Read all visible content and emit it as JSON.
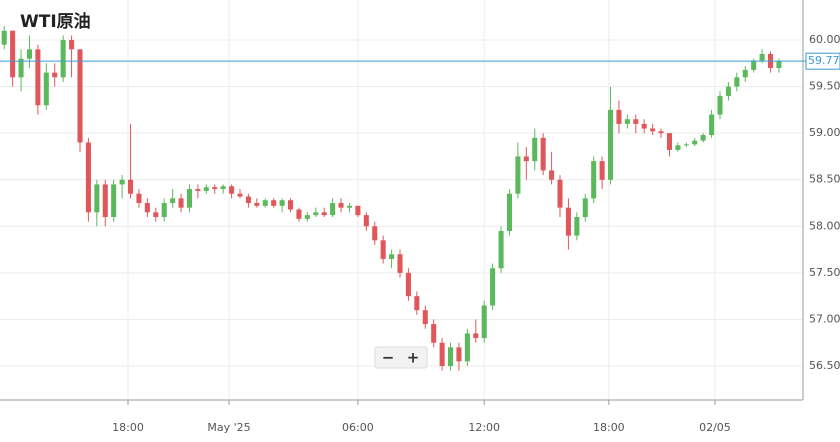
{
  "chart_data": {
    "type": "candlestick",
    "title": "WTI原油",
    "up_color": "#5cb85c",
    "down_color": "#e0575b",
    "grid": true,
    "candles": [
      [
        59.95,
        60.15,
        59.9,
        60.1
      ],
      [
        60.1,
        60.1,
        59.5,
        59.6
      ],
      [
        59.6,
        59.9,
        59.45,
        59.8
      ],
      [
        59.8,
        60.05,
        59.7,
        59.9
      ],
      [
        59.9,
        59.95,
        59.2,
        59.3
      ],
      [
        59.3,
        59.75,
        59.25,
        59.65
      ],
      [
        59.65,
        59.75,
        59.5,
        59.6
      ],
      [
        59.6,
        60.05,
        59.55,
        60.0
      ],
      [
        60.0,
        60.05,
        59.6,
        59.9
      ],
      [
        59.9,
        59.9,
        58.8,
        58.9
      ],
      [
        58.9,
        58.95,
        58.05,
        58.15
      ],
      [
        58.15,
        58.5,
        58.0,
        58.45
      ],
      [
        58.45,
        58.5,
        58.0,
        58.1
      ],
      [
        58.1,
        58.5,
        58.05,
        58.45
      ],
      [
        58.45,
        58.55,
        58.3,
        58.5
      ],
      [
        58.5,
        59.1,
        58.3,
        58.35
      ],
      [
        58.35,
        58.4,
        58.2,
        58.25
      ],
      [
        58.25,
        58.3,
        58.1,
        58.15
      ],
      [
        58.15,
        58.2,
        58.05,
        58.1
      ],
      [
        58.1,
        58.3,
        58.05,
        58.25
      ],
      [
        58.25,
        58.4,
        58.2,
        58.3
      ],
      [
        58.3,
        58.35,
        58.15,
        58.2
      ],
      [
        58.2,
        58.45,
        58.15,
        58.4
      ],
      [
        58.4,
        58.45,
        58.3,
        58.38
      ],
      [
        58.38,
        58.45,
        58.35,
        58.42
      ],
      [
        58.42,
        58.45,
        58.35,
        58.4
      ],
      [
        58.4,
        58.45,
        58.35,
        58.43
      ],
      [
        58.43,
        58.45,
        58.3,
        58.35
      ],
      [
        58.35,
        58.4,
        58.3,
        58.32
      ],
      [
        58.32,
        58.35,
        58.2,
        58.25
      ],
      [
        58.25,
        58.3,
        58.2,
        58.22
      ],
      [
        58.22,
        58.3,
        58.2,
        58.28
      ],
      [
        58.28,
        58.3,
        58.2,
        58.22
      ],
      [
        58.22,
        58.3,
        58.15,
        58.28
      ],
      [
        58.28,
        58.3,
        58.15,
        58.18
      ],
      [
        58.18,
        58.2,
        58.05,
        58.08
      ],
      [
        58.08,
        58.15,
        58.05,
        58.12
      ],
      [
        58.12,
        58.2,
        58.1,
        58.15
      ],
      [
        58.15,
        58.2,
        58.1,
        58.12
      ],
      [
        58.12,
        58.3,
        58.1,
        58.25
      ],
      [
        58.25,
        58.3,
        58.15,
        58.2
      ],
      [
        58.2,
        58.25,
        58.15,
        58.22
      ],
      [
        58.22,
        58.22,
        58.1,
        58.12
      ],
      [
        58.12,
        58.15,
        57.95,
        58.0
      ],
      [
        58.0,
        58.05,
        57.8,
        57.85
      ],
      [
        57.85,
        57.9,
        57.6,
        57.65
      ],
      [
        57.65,
        57.75,
        57.55,
        57.7
      ],
      [
        57.7,
        57.75,
        57.45,
        57.5
      ],
      [
        57.5,
        57.55,
        57.2,
        57.25
      ],
      [
        57.25,
        57.3,
        57.05,
        57.1
      ],
      [
        57.1,
        57.15,
        56.9,
        56.95
      ],
      [
        56.95,
        57.0,
        56.7,
        56.75
      ],
      [
        56.75,
        56.8,
        56.45,
        56.5
      ],
      [
        56.5,
        56.75,
        56.45,
        56.7
      ],
      [
        56.7,
        56.75,
        56.45,
        56.55
      ],
      [
        56.55,
        56.9,
        56.5,
        56.85
      ],
      [
        56.85,
        57.0,
        56.75,
        56.8
      ],
      [
        56.8,
        57.2,
        56.75,
        57.15
      ],
      [
        57.15,
        57.6,
        57.1,
        57.55
      ],
      [
        57.55,
        58.0,
        57.5,
        57.95
      ],
      [
        57.95,
        58.4,
        57.9,
        58.35
      ],
      [
        58.35,
        58.9,
        58.3,
        58.75
      ],
      [
        58.75,
        58.85,
        58.5,
        58.7
      ],
      [
        58.7,
        59.05,
        58.6,
        58.95
      ],
      [
        58.95,
        59.0,
        58.55,
        58.6
      ],
      [
        58.6,
        58.8,
        58.45,
        58.5
      ],
      [
        58.5,
        58.55,
        58.1,
        58.2
      ],
      [
        58.2,
        58.3,
        57.75,
        57.9
      ],
      [
        57.9,
        58.15,
        57.85,
        58.1
      ],
      [
        58.1,
        58.35,
        58.05,
        58.3
      ],
      [
        58.3,
        58.75,
        58.25,
        58.7
      ],
      [
        58.7,
        58.75,
        58.4,
        58.5
      ],
      [
        58.5,
        59.5,
        58.45,
        59.25
      ],
      [
        59.25,
        59.35,
        59.0,
        59.1
      ],
      [
        59.1,
        59.2,
        59.05,
        59.15
      ],
      [
        59.15,
        59.2,
        59.0,
        59.1
      ],
      [
        59.1,
        59.15,
        59.0,
        59.05
      ],
      [
        59.05,
        59.1,
        58.98,
        59.02
      ],
      [
        59.02,
        59.05,
        58.95,
        59.0
      ],
      [
        59.0,
        59.0,
        58.75,
        58.82
      ],
      [
        58.82,
        58.9,
        58.8,
        58.87
      ],
      [
        58.87,
        58.9,
        58.85,
        58.88
      ],
      [
        58.88,
        58.95,
        58.86,
        58.92
      ],
      [
        58.92,
        59.0,
        58.9,
        58.98
      ],
      [
        58.98,
        59.25,
        58.95,
        59.2
      ],
      [
        59.2,
        59.45,
        59.15,
        59.4
      ],
      [
        59.4,
        59.55,
        59.35,
        59.5
      ],
      [
        59.5,
        59.65,
        59.45,
        59.6
      ],
      [
        59.6,
        59.72,
        59.55,
        59.68
      ],
      [
        59.68,
        59.8,
        59.65,
        59.78
      ],
      [
        59.78,
        59.9,
        59.75,
        59.85
      ],
      [
        59.85,
        59.88,
        59.65,
        59.7
      ],
      [
        59.7,
        59.8,
        59.65,
        59.77
      ]
    ],
    "last_price": 59.773,
    "last_price_color": "#3a9ad9",
    "ylim": [
      56.135,
      60.43
    ],
    "yticks": [
      {
        "value": 56.5,
        "label": "56.500"
      },
      {
        "value": 57,
        "label": "57.000"
      },
      {
        "value": 57.5,
        "label": "57.500"
      },
      {
        "value": 58,
        "label": "58.000"
      },
      {
        "value": 58.5,
        "label": "58.500"
      },
      {
        "value": 59,
        "label": "59.000"
      },
      {
        "value": 59.5,
        "label": "59.500"
      },
      {
        "value": 60,
        "label": "60.000"
      }
    ],
    "xlim": [
      -0.5,
      94.5
    ],
    "xticks": [
      {
        "value": 14.7,
        "label": "18:00"
      },
      {
        "value": 26.7,
        "label": "May '25"
      },
      {
        "value": 42.0,
        "label": "06:00"
      },
      {
        "value": 57.0,
        "label": "12:00"
      },
      {
        "value": 71.8,
        "label": "18:00"
      },
      {
        "value": 84.4,
        "label": "02/05"
      }
    ],
    "zoom_controls": [
      "−",
      "+"
    ]
  }
}
